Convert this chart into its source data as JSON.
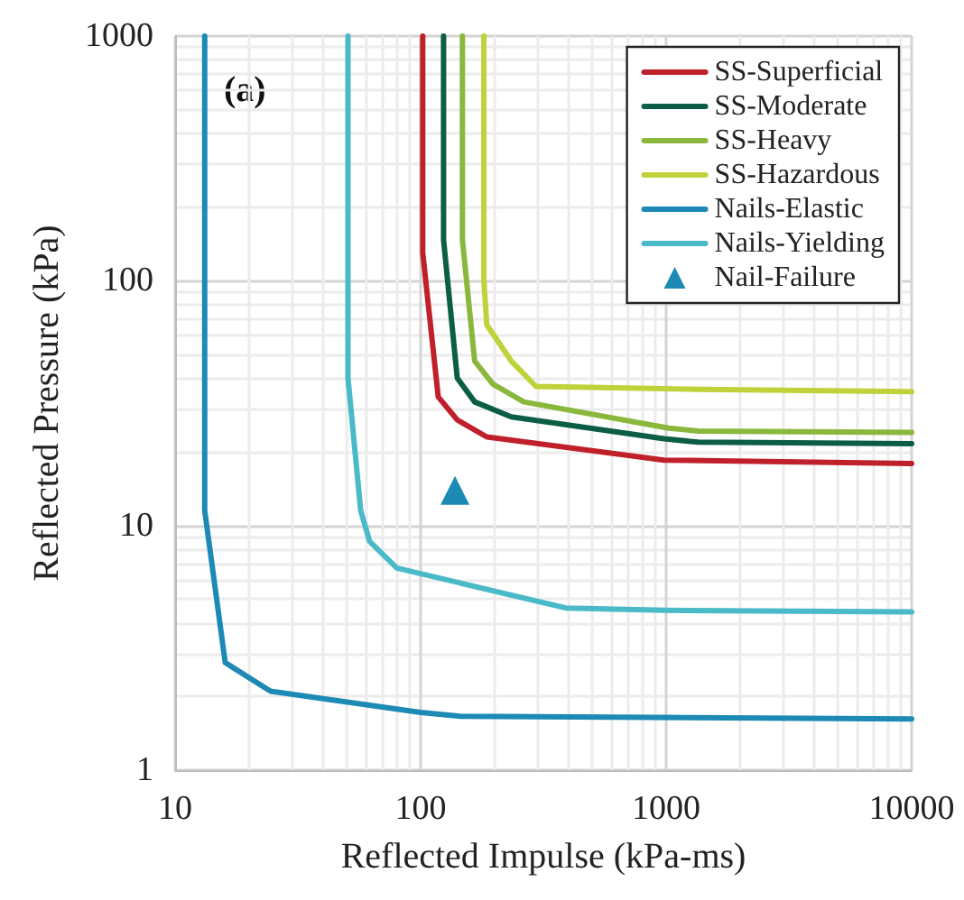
{
  "chart_data": {
    "type": "line",
    "xlabel": "Reflected Impulse (kPa-ms)",
    "ylabel": "Reflected Pressure (kPa)",
    "annotations": [
      "(a)"
    ],
    "log": "xy",
    "xlim": [
      10,
      10000
    ],
    "ylim": [
      1,
      1000
    ],
    "xticks": [
      10,
      100,
      1000,
      10000
    ],
    "yticks": [
      1,
      10,
      100,
      1000
    ],
    "grid": true,
    "legend": "top right",
    "line_style": "solid",
    "marker": "none",
    "series": [
      {
        "name": "SS-Superficial",
        "color": "#c0202a",
        "x": [
          102,
          102,
          118,
          141,
          186,
          980,
          10000
        ],
        "values": [
          1000,
          130,
          33.5,
          27,
          23,
          18.5,
          17.9
        ]
      },
      {
        "name": "SS-Moderate",
        "color": "#0b5e45",
        "x": [
          124,
          124,
          141,
          166,
          234,
          980,
          1350,
          10000
        ],
        "values": [
          1000,
          147,
          40,
          32,
          27.8,
          22.6,
          21.9,
          21.6
        ]
      },
      {
        "name": "SS-Heavy",
        "color": "#8ab83d",
        "x": [
          148,
          148,
          166,
          197,
          263,
          1025,
          1350,
          10000
        ],
        "values": [
          1000,
          147,
          47,
          37.8,
          32,
          25,
          24.3,
          24
        ]
      },
      {
        "name": "SS-Hazardous",
        "color": "#bfd23a",
        "x": [
          181,
          181,
          186,
          234,
          295,
          1350,
          10000
        ],
        "values": [
          1000,
          100,
          66,
          47,
          37,
          36,
          35.2
        ]
      },
      {
        "name": "Nails-Elastic",
        "color": "#1c8ab5",
        "x": [
          13.2,
          13.2,
          16,
          24.5,
          100,
          145,
          10000
        ],
        "values": [
          1000,
          11.5,
          2.75,
          2.1,
          1.72,
          1.66,
          1.62
        ]
      },
      {
        "name": "Nails-Yielding",
        "color": "#4ab9c8",
        "x": [
          50.6,
          50.6,
          57,
          62,
          80,
          390,
          1000,
          10000
        ],
        "values": [
          1000,
          40,
          11.5,
          8.6,
          6.7,
          4.6,
          4.5,
          4.43
        ]
      },
      {
        "name": "Nail-Failure",
        "type": "scatter",
        "marker": "triangle",
        "color": "#1c8ab5",
        "x": [
          138
        ],
        "values": [
          13.9
        ]
      }
    ]
  }
}
